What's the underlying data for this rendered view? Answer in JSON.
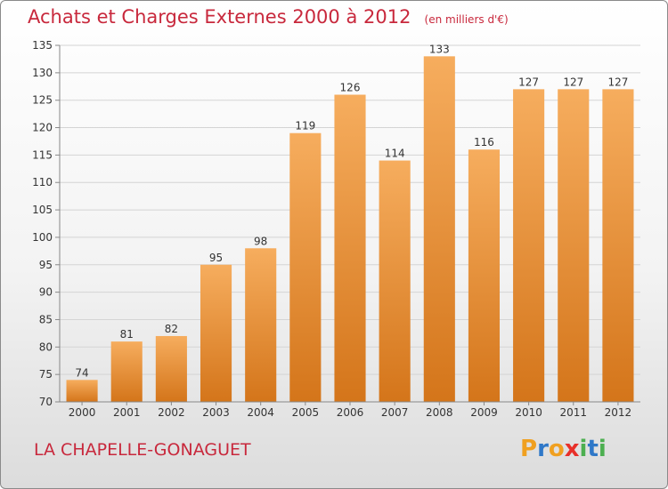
{
  "title": "Achats et Charges Externes 2000 à 2012",
  "unit_note": "(en milliers d'€)",
  "commune": "LA CHAPELLE-GONAGUET",
  "logo": {
    "letters": [
      "P",
      "r",
      "o",
      "x",
      "i",
      "t",
      "i"
    ],
    "colors": [
      "#f0a020",
      "#2f78c8",
      "#f0a020",
      "#e8302a",
      "#4caf50",
      "#2f78c8",
      "#4caf50"
    ]
  },
  "colors": {
    "bar": "#f0962e",
    "bar_light": "#f6ad5e",
    "bar_dark": "#d4751a",
    "title": "#c8283c"
  },
  "chart_data": {
    "type": "bar",
    "categories": [
      "2000",
      "2001",
      "2002",
      "2003",
      "2004",
      "2005",
      "2006",
      "2007",
      "2008",
      "2009",
      "2010",
      "2011",
      "2012"
    ],
    "values": [
      74,
      81,
      82,
      95,
      98,
      119,
      126,
      114,
      133,
      116,
      127,
      127,
      127
    ],
    "ylim": [
      70,
      135
    ],
    "yticks": [
      70,
      75,
      80,
      85,
      90,
      95,
      100,
      105,
      110,
      115,
      120,
      125,
      130,
      135
    ],
    "grid": true,
    "legend": "none"
  }
}
